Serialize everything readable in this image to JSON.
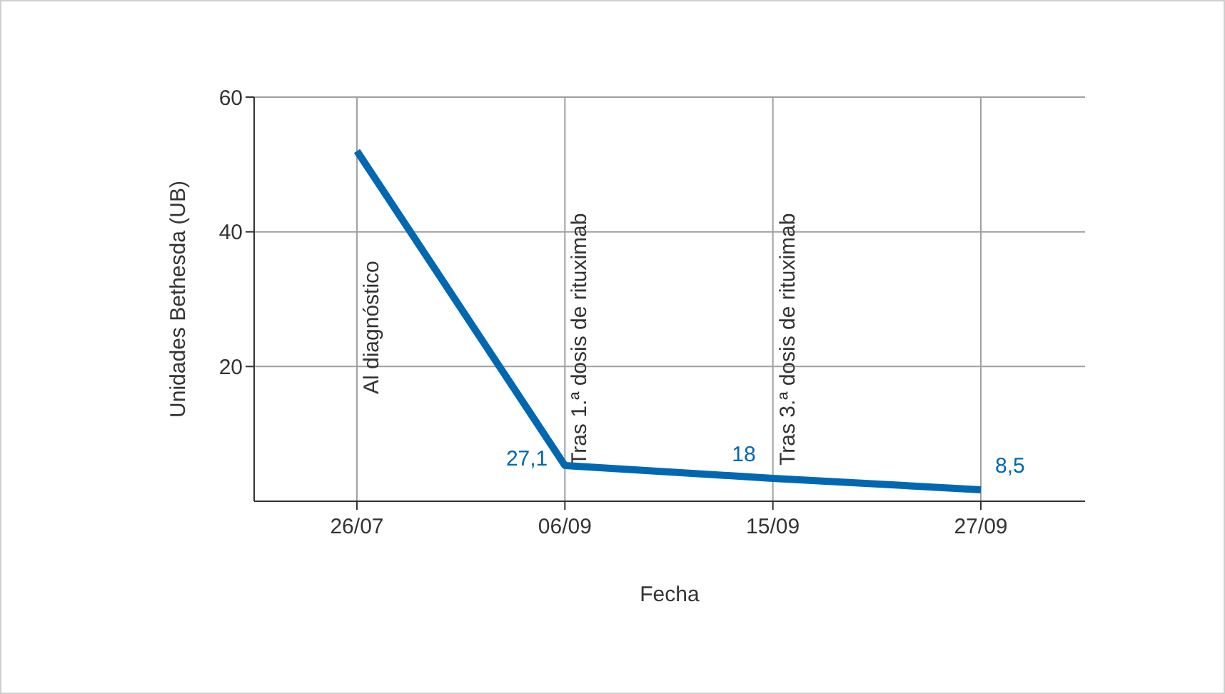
{
  "chart_data": {
    "type": "line",
    "xlabel": "Fecha",
    "ylabel": "Unidades Bethesda (UB)",
    "categories": [
      "26/07",
      "06/09",
      "15/09",
      "27/09"
    ],
    "series": [
      {
        "color": "#0068b0",
        "values": [
          52,
          5.3,
          3.4,
          1.7
        ]
      }
    ],
    "ylim": [
      0,
      60
    ],
    "yticks": [
      20,
      40,
      60
    ],
    "grid": true,
    "marker": "none",
    "line_style": "solid",
    "annotations": [
      "Al diagnóstico",
      "Tras 1.ª dosis de rituximab",
      "Tras 3.ª dosis de rituximab",
      {
        "text": "27,1",
        "x": "06/09",
        "y": 5.3
      },
      {
        "text": "18",
        "x": "15/09",
        "y": 3.4
      },
      {
        "text": "8,5",
        "x": "27/09",
        "y": 1.7
      }
    ]
  }
}
